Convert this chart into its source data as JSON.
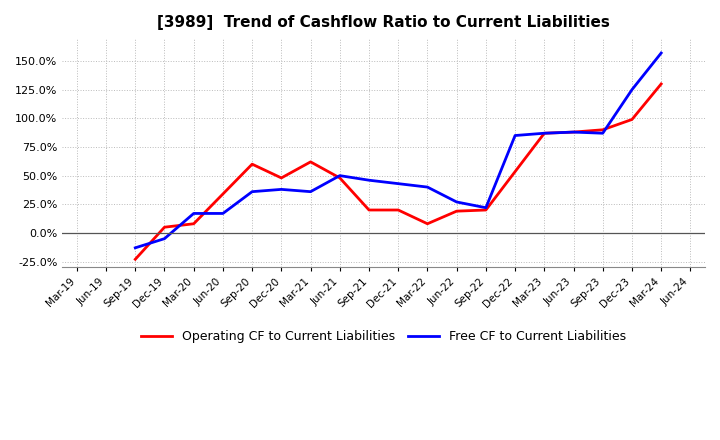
{
  "title": "[3989]  Trend of Cashflow Ratio to Current Liabilities",
  "x_labels": [
    "Mar-19",
    "Jun-19",
    "Sep-19",
    "Dec-19",
    "Mar-20",
    "Jun-20",
    "Sep-20",
    "Dec-20",
    "Mar-21",
    "Jun-21",
    "Sep-21",
    "Dec-21",
    "Mar-22",
    "Jun-22",
    "Sep-22",
    "Dec-22",
    "Mar-23",
    "Jun-23",
    "Sep-23",
    "Dec-23",
    "Mar-24",
    "Jun-24"
  ],
  "operating_cf": [
    null,
    null,
    -0.23,
    0.05,
    0.08,
    null,
    0.6,
    0.48,
    0.62,
    0.48,
    0.2,
    0.2,
    0.08,
    0.19,
    0.2,
    null,
    0.87,
    0.88,
    0.9,
    0.99,
    1.3,
    null
  ],
  "free_cf": [
    null,
    null,
    -0.13,
    -0.05,
    0.17,
    0.17,
    0.36,
    0.38,
    0.36,
    0.5,
    0.46,
    0.43,
    0.4,
    0.27,
    0.22,
    0.85,
    0.87,
    0.88,
    0.87,
    1.25,
    1.57,
    null
  ],
  "operating_cf_color": "#ff0000",
  "free_cf_color": "#0000ff",
  "background_color": "#ffffff",
  "grid_color": "#aaaaaa",
  "ylim_min": -0.3,
  "ylim_max": 1.7,
  "yticks": [
    -0.25,
    0.0,
    0.25,
    0.5,
    0.75,
    1.0,
    1.25,
    1.5
  ],
  "legend_labels": [
    "Operating CF to Current Liabilities",
    "Free CF to Current Liabilities"
  ]
}
